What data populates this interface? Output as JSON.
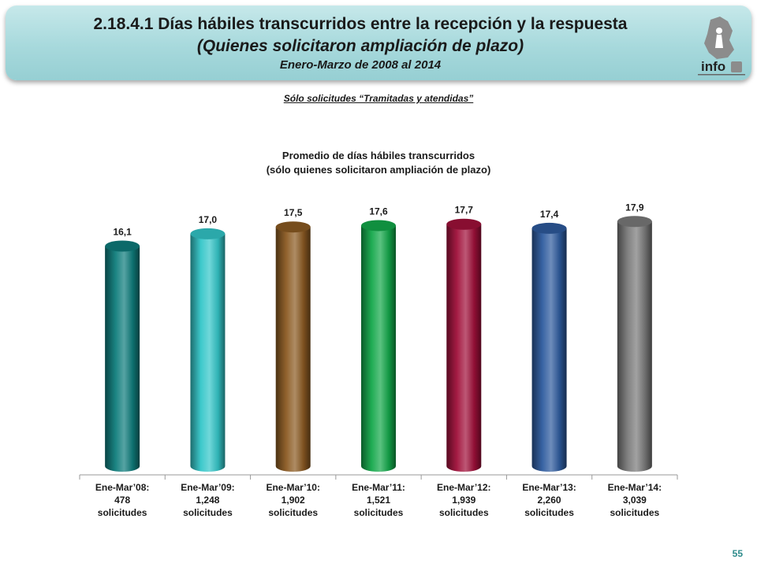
{
  "header": {
    "title_line1": "2.18.4.1 Días hábiles transcurridos entre la recepción y la respuesta",
    "title_line2": "(Quienes solicitaron ampliación de plazo)",
    "title_line3": "Enero-Marzo de 2008 al 2014",
    "logo_text": "info"
  },
  "note": "Sólo solicitudes “Tramitadas y atendidas”",
  "chart_data": {
    "type": "bar",
    "title_line1": "Promedio de días hábiles transcurridos",
    "title_line2": "(sólo quienes solicitaron ampliación de plazo)",
    "categories": [
      [
        "Ene-Mar’08:",
        "478",
        "solicitudes"
      ],
      [
        "Ene-Mar’09:",
        "1,248",
        "solicitudes"
      ],
      [
        "Ene-Mar’10:",
        "1,902",
        "solicitudes"
      ],
      [
        "Ene-Mar’11:",
        "1,521",
        "solicitudes"
      ],
      [
        "Ene-Mar’12:",
        "1,939",
        "solicitudes"
      ],
      [
        "Ene-Mar’13:",
        "2,260",
        "solicitudes"
      ],
      [
        "Ene-Mar’14:",
        "3,039",
        "solicitudes"
      ]
    ],
    "values": [
      16.1,
      17.0,
      17.5,
      17.6,
      17.7,
      17.4,
      17.9
    ],
    "value_labels": [
      "16,1",
      "17,0",
      "17,5",
      "17,6",
      "17,7",
      "17,4",
      "17,9"
    ],
    "colors": [
      "#0e7c7b",
      "#33c6c8",
      "#8b5a22",
      "#13a84a",
      "#a0103a",
      "#2e5b9e",
      "#7a7a7a"
    ],
    "ylim": [
      0,
      18
    ]
  },
  "page_number": "55"
}
